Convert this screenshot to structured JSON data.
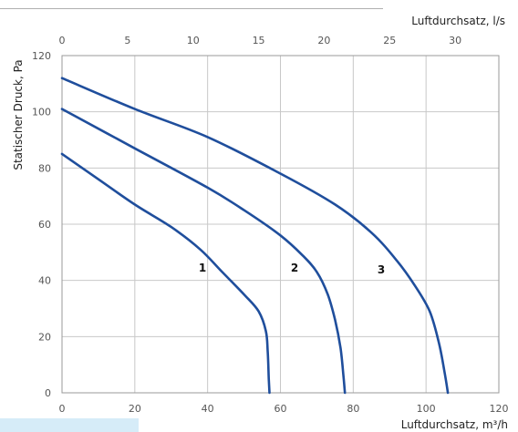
{
  "chart_data": {
    "type": "line",
    "xlabel": "Luftdurchsatz, m³/h",
    "x2label": "Luftdurchsatz, l/s",
    "ylabel": "Statischer Druck, Pa",
    "xlim": [
      0,
      120
    ],
    "x2lim": [
      0,
      33.33
    ],
    "ylim": [
      0,
      120
    ],
    "xticks": [
      "0",
      "20",
      "40",
      "60",
      "80",
      "100",
      "120"
    ],
    "x2ticks": [
      "0",
      "5",
      "10",
      "15",
      "20",
      "25",
      "30"
    ],
    "yticks": [
      "0",
      "20",
      "40",
      "60",
      "80",
      "100",
      "120"
    ],
    "grid": true,
    "line_color": "#1f4e9c",
    "series": [
      {
        "name": "1",
        "points": [
          [
            0,
            85
          ],
          [
            10,
            76
          ],
          [
            20,
            67
          ],
          [
            30,
            59
          ],
          [
            38,
            51
          ],
          [
            44,
            43
          ],
          [
            50,
            35
          ],
          [
            54,
            29
          ],
          [
            56,
            22
          ],
          [
            56.5,
            15
          ],
          [
            56.8,
            5
          ],
          [
            57,
            0
          ]
        ]
      },
      {
        "name": "2",
        "points": [
          [
            0,
            101
          ],
          [
            20,
            87
          ],
          [
            40,
            73
          ],
          [
            50,
            65
          ],
          [
            60,
            56
          ],
          [
            66,
            49
          ],
          [
            70,
            43
          ],
          [
            73,
            35
          ],
          [
            75,
            26
          ],
          [
            76.5,
            16
          ],
          [
            77.3,
            6
          ],
          [
            77.7,
            0
          ]
        ]
      },
      {
        "name": "3",
        "points": [
          [
            0,
            112
          ],
          [
            20,
            101
          ],
          [
            40,
            91
          ],
          [
            60,
            78
          ],
          [
            75,
            67
          ],
          [
            85,
            57
          ],
          [
            92,
            47
          ],
          [
            97,
            38
          ],
          [
            101,
            29
          ],
          [
            103.5,
            18
          ],
          [
            105,
            8
          ],
          [
            106,
            0
          ]
        ]
      }
    ]
  }
}
